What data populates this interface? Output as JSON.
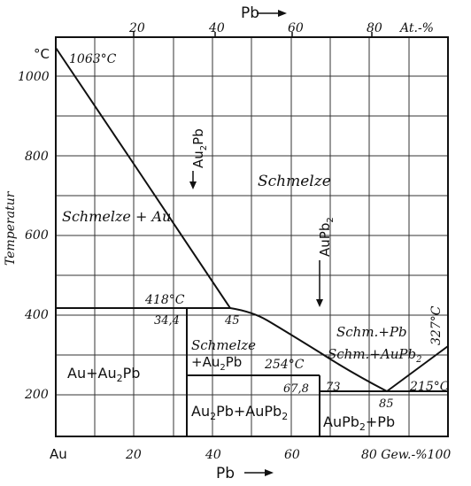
{
  "top_axis": {
    "title": "Pb",
    "ticks": [
      "20",
      "40",
      "60",
      "80"
    ],
    "unit": "At.-%"
  },
  "bottom_axis": {
    "origin_label": "Au",
    "ticks": [
      "20",
      "40",
      "60"
    ],
    "end_label": "80 Gew.-%100",
    "title": "Pb"
  },
  "y_axis": {
    "unit": "°C",
    "title": "Temperatur",
    "ticks": [
      "1000",
      "800",
      "600",
      "400",
      "200"
    ]
  },
  "labels": {
    "au_melting": "1063°C",
    "peritectic_1": "418°C",
    "peritectic_1_left": "34,4",
    "peritectic_1_right": "45",
    "peritectic_2": "254°C",
    "peritectic_2_left": "67,8",
    "peritectic_2_right": "73",
    "eutectic": "215°C",
    "eutectic_comp": "85",
    "pb_melting": "327°C",
    "compound_1_prefix": "Au",
    "compound_1_sub": "2",
    "compound_1_suffix": "Pb",
    "compound_2_prefix": "AuPb",
    "compound_2_sub": "2"
  },
  "regions": {
    "melt": "Schmelze",
    "melt_au": "Schmelze + Au",
    "melt_au2pb_line1": "Schmelze",
    "melt_au2pb_line2_prefix": "+Au",
    "melt_au2pb_line2_sub": "2",
    "melt_au2pb_line2_suffix": "Pb",
    "melt_pb": "Schm.+Pb",
    "melt_aupb2_prefix": "Schm.+AuPb",
    "melt_aupb2_sub": "2",
    "au_au2pb_prefix": "Au+Au",
    "au_au2pb_sub": "2",
    "au_au2pb_suffix": "Pb",
    "au2pb_aupb2_prefix": "Au",
    "au2pb_aupb2_sub1": "2",
    "au2pb_aupb2_mid": "Pb+AuPb",
    "au2pb_aupb2_sub2": "2",
    "aupb2_pb_prefix": "AuPb",
    "aupb2_pb_sub": "2",
    "aupb2_pb_suffix": "+Pb"
  }
}
